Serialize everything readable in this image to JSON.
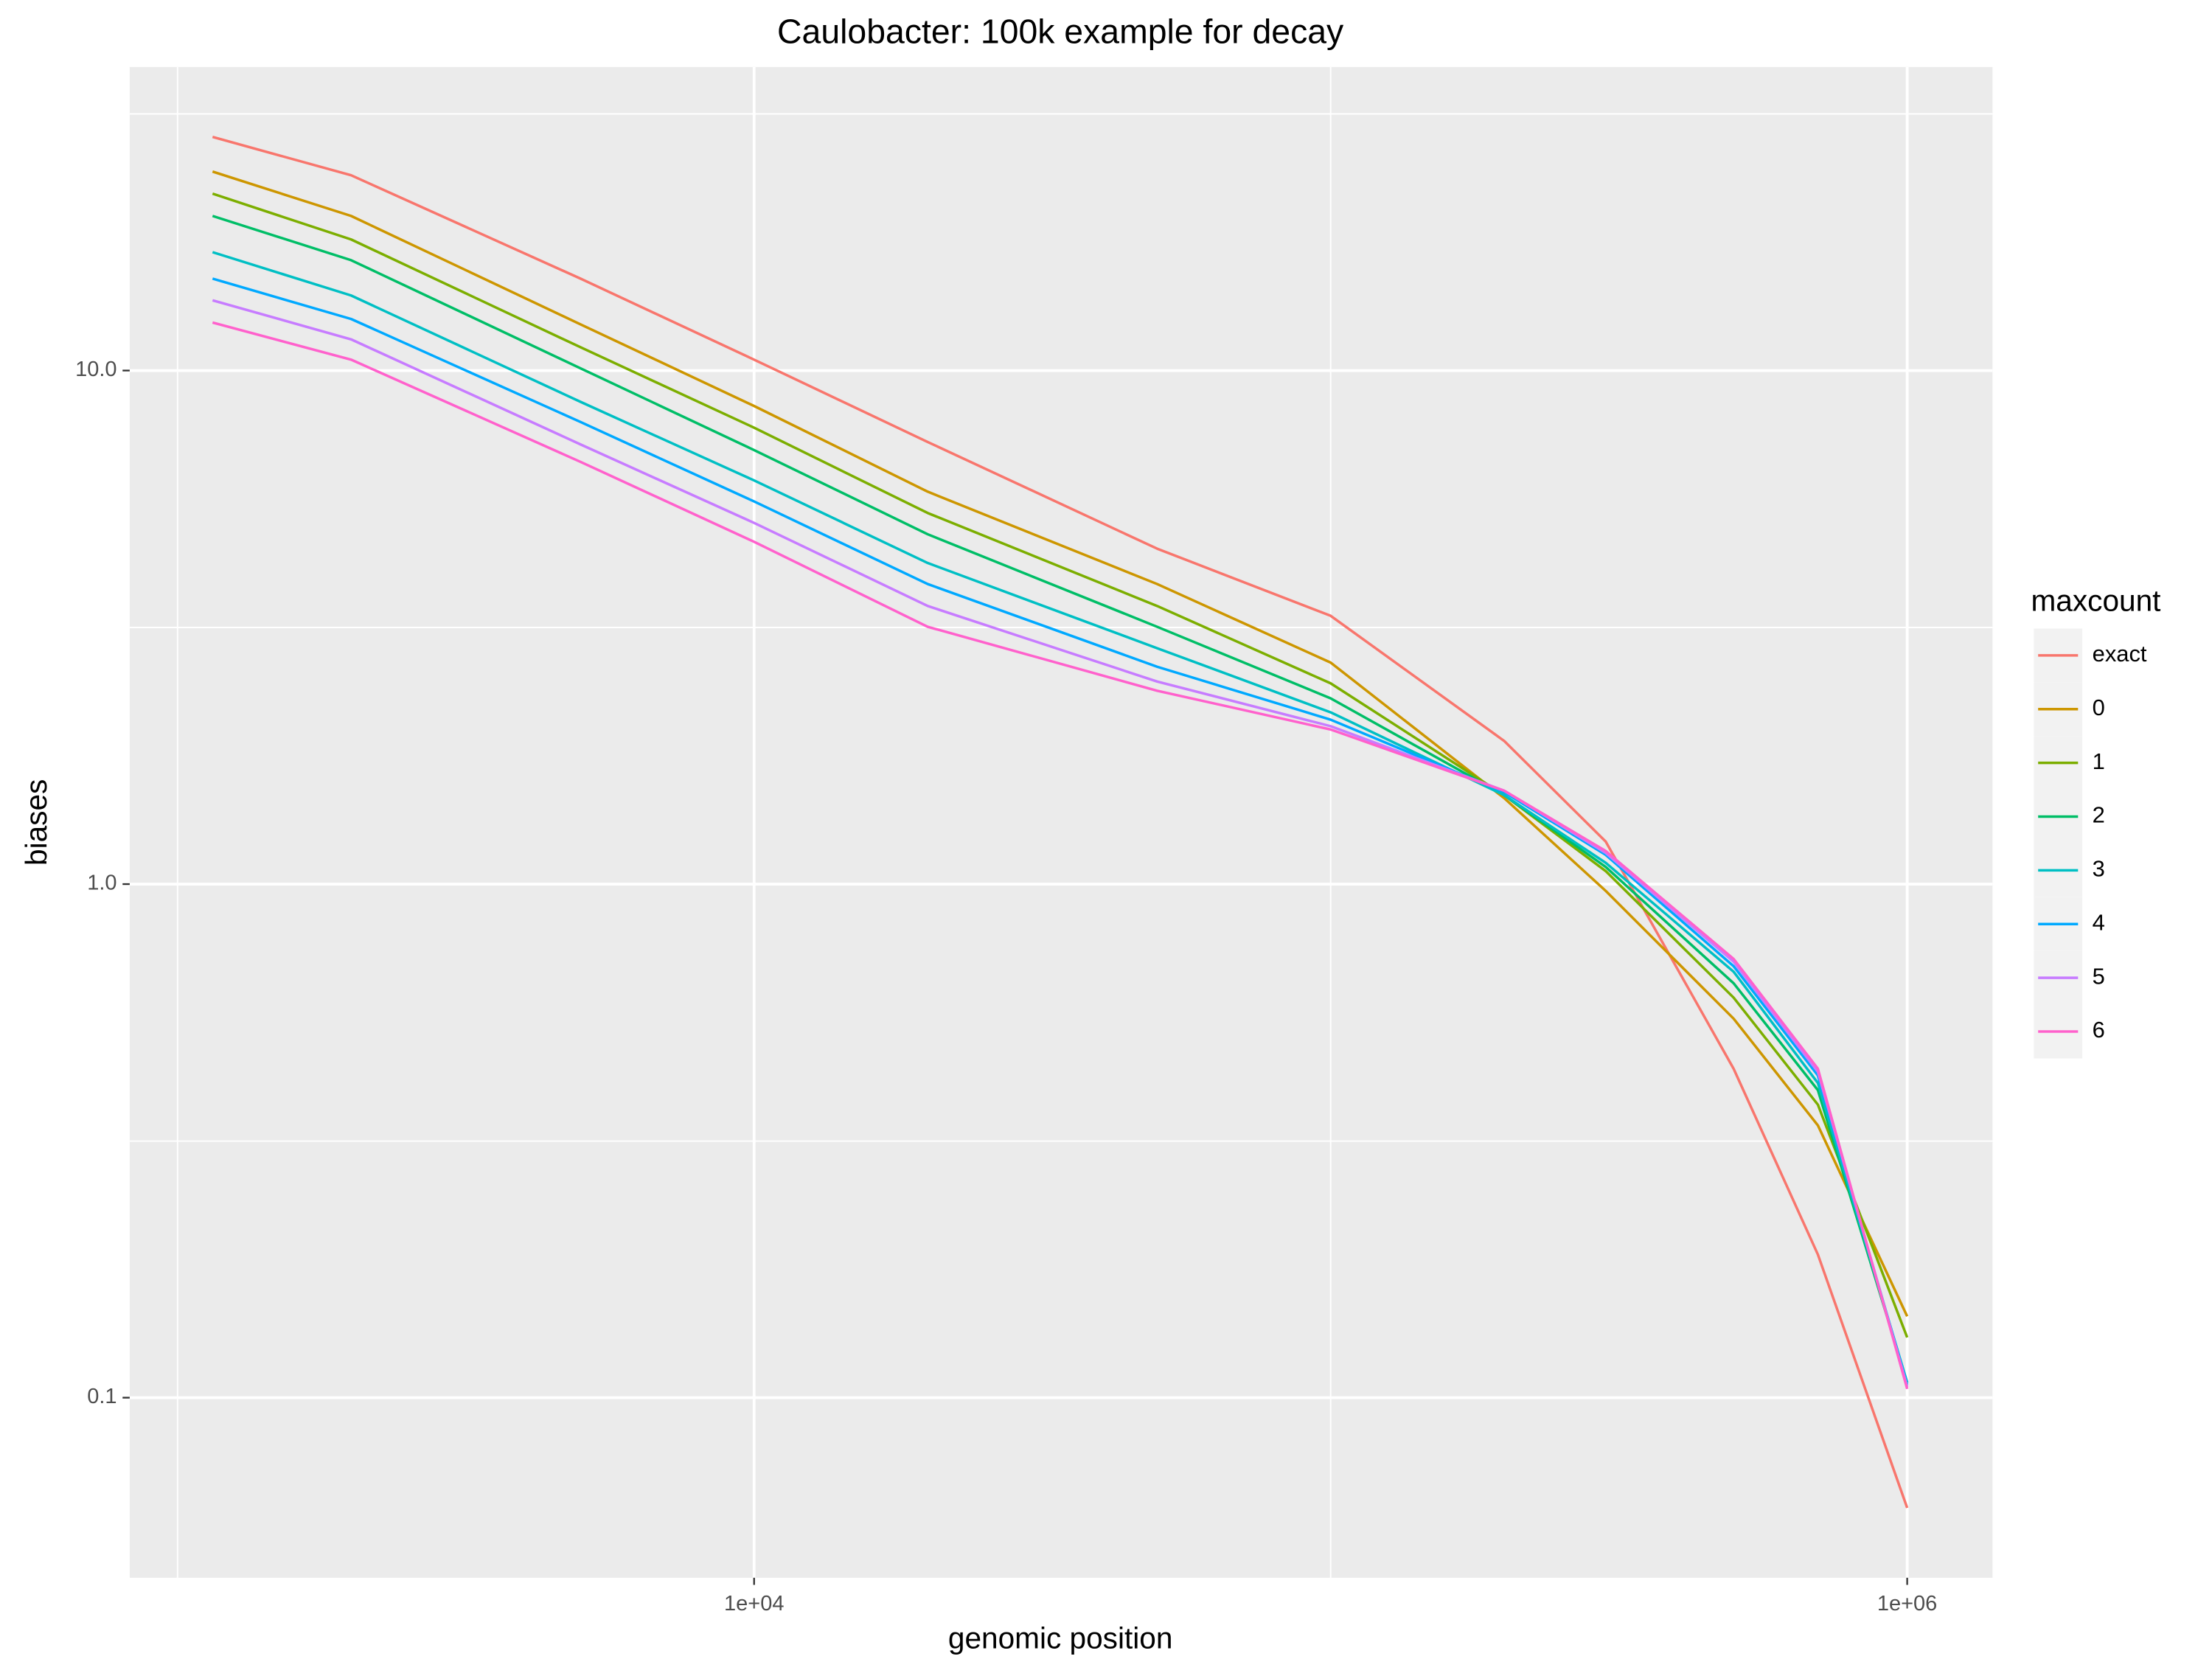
{
  "chart_data": {
    "type": "line",
    "title": "Caulobacter: 100k example for decay",
    "x_label": "genomic position",
    "y_label": "biases",
    "legend_title": "maxcount",
    "legend_position": "right",
    "x_log": true,
    "y_log": true,
    "grid": true,
    "xlim": [
      826,
      1406000
    ],
    "ylim": [
      0.0446,
      39.0
    ],
    "xticks": [
      {
        "value": 10000,
        "label": "1e+04"
      },
      {
        "value": 1000000,
        "label": "1e+06"
      }
    ],
    "yticks": [
      {
        "value": 0.1,
        "label": "0.1"
      },
      {
        "value": 1,
        "label": "1.0"
      },
      {
        "value": 10,
        "label": "10.0"
      }
    ],
    "x_minor_breaks": [
      1000,
      100000
    ],
    "y_minor_breaks": [
      0.316,
      3.16,
      31.6
    ],
    "x": [
      1150,
      2000,
      5000,
      10000,
      20000,
      50000,
      100000,
      200000,
      300000,
      500000,
      700000,
      1000000
    ],
    "series": [
      {
        "name": "exact",
        "color": "#F8766D",
        "values": [
          28.5,
          24.0,
          15.1,
          10.5,
          7.26,
          4.5,
          3.33,
          1.9,
          1.21,
          0.437,
          0.19,
          0.061
        ]
      },
      {
        "name": "0",
        "color": "#CD9600",
        "values": [
          24.4,
          20.0,
          12.3,
          8.53,
          5.81,
          3.84,
          2.7,
          1.47,
          0.97,
          0.547,
          0.339,
          0.144
        ]
      },
      {
        "name": "1",
        "color": "#7CAE00",
        "values": [
          22.1,
          18.0,
          11.1,
          7.74,
          5.28,
          3.48,
          2.46,
          1.49,
          1.06,
          0.601,
          0.372,
          0.131
        ]
      },
      {
        "name": "2",
        "color": "#00BE67",
        "values": [
          20.0,
          16.4,
          10.1,
          7.0,
          4.8,
          3.17,
          2.3,
          1.49,
          1.08,
          0.641,
          0.397,
          0.107
        ]
      },
      {
        "name": "3",
        "color": "#00BFC4",
        "values": [
          17.0,
          14.0,
          8.69,
          6.11,
          4.22,
          2.88,
          2.16,
          1.49,
          1.1,
          0.675,
          0.41,
          0.107
        ]
      },
      {
        "name": "4",
        "color": "#00A9FF",
        "values": [
          15.1,
          12.6,
          7.94,
          5.56,
          3.84,
          2.65,
          2.09,
          1.51,
          1.14,
          0.692,
          0.424,
          0.106
        ]
      },
      {
        "name": "5",
        "color": "#C77CFF",
        "values": [
          13.7,
          11.5,
          7.18,
          5.05,
          3.48,
          2.48,
          2.03,
          1.52,
          1.15,
          0.706,
          0.431,
          0.105
        ]
      },
      {
        "name": "6",
        "color": "#FF61CC",
        "values": [
          12.4,
          10.5,
          6.64,
          4.64,
          3.17,
          2.38,
          2.0,
          1.52,
          1.16,
          0.715,
          0.437,
          0.104
        ]
      }
    ]
  }
}
